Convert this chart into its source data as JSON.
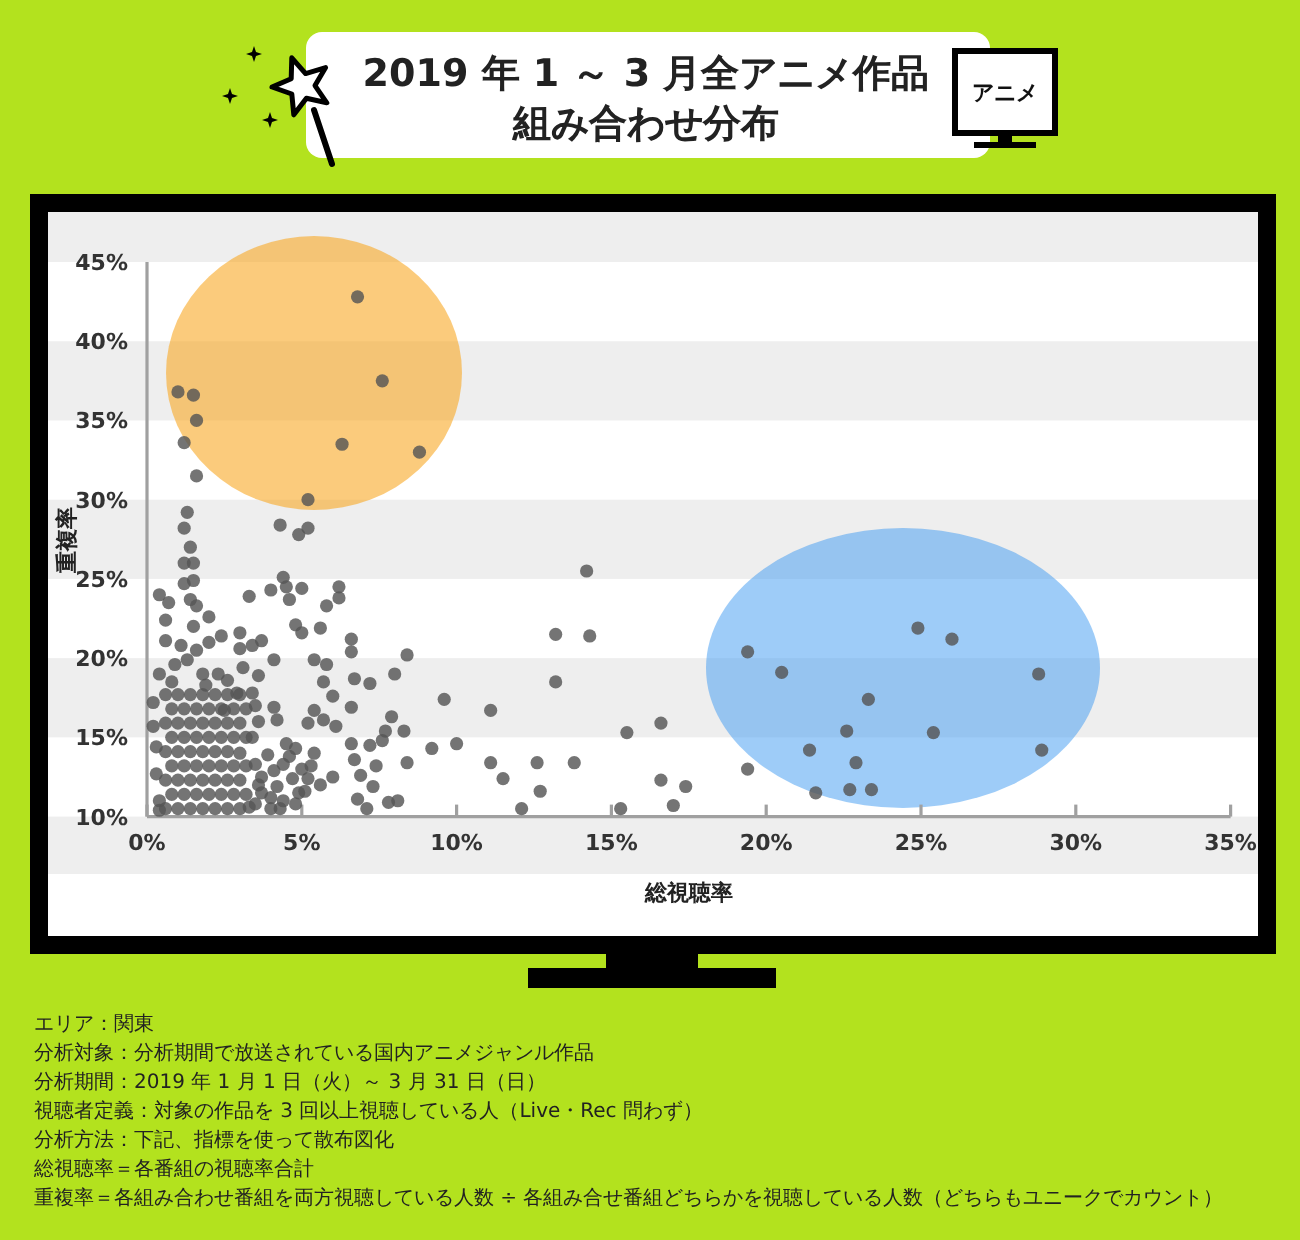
{
  "chart_data": {
    "type": "scatter",
    "title": "2019 年 1 ～ 3 月全アニメ作品組み合わせ分布",
    "xlabel": "総視聴率",
    "ylabel": "重複率",
    "xlim": [
      0,
      35
    ],
    "ylim": [
      10,
      45
    ],
    "xticks": [
      {
        "value": 0,
        "label": "0%"
      },
      {
        "value": 5,
        "label": "5%"
      },
      {
        "value": 10,
        "label": "10%"
      },
      {
        "value": 15,
        "label": "15%"
      },
      {
        "value": 20,
        "label": "20%"
      },
      {
        "value": 25,
        "label": "25%"
      },
      {
        "value": 30,
        "label": "30%"
      },
      {
        "value": 35,
        "label": "35%"
      }
    ],
    "yticks": [
      {
        "value": 10,
        "label": "10%"
      },
      {
        "value": 15,
        "label": "15%"
      },
      {
        "value": 20,
        "label": "20%"
      },
      {
        "value": 25,
        "label": "25%"
      },
      {
        "value": 30,
        "label": "30%"
      },
      {
        "value": 35,
        "label": "35%"
      },
      {
        "value": 40,
        "label": "40%"
      },
      {
        "value": 45,
        "label": "45%"
      }
    ],
    "bands": [
      {
        "axis": "y",
        "from": 15,
        "to": 20,
        "color": "#eeeeee"
      },
      {
        "axis": "y",
        "from": 25,
        "to": 30,
        "color": "#eeeeee"
      },
      {
        "axis": "y",
        "from": 35,
        "to": 40,
        "color": "#eeeeee"
      }
    ],
    "marker": "circle",
    "series": [
      {
        "color": "#555555",
        "x": [
          6.8,
          7.6,
          1.0,
          1.5,
          1.6,
          1.2,
          6.3,
          8.8,
          1.6,
          5.2,
          1.3,
          14.2,
          13.2,
          14.3,
          13.2,
          11.1,
          15.5,
          16.6,
          11.1,
          11.5,
          12.6,
          13.8,
          12.7,
          12.1,
          15.3,
          16.6,
          17.4,
          17.0,
          19.4,
          19.4,
          20.5,
          23.3,
          22.6,
          25.4,
          21.4,
          22.9,
          21.6,
          22.7,
          23.4,
          24.9,
          26.0,
          28.8,
          28.9,
          4.3,
          5.2,
          4.9,
          1.2,
          1.4,
          1.2,
          1.5,
          1.5,
          1.2,
          0.4,
          0.7,
          1.4,
          0.6,
          1.6,
          2.0,
          2.4,
          0.6,
          3.3,
          3.0,
          3.0,
          3.4,
          3.7,
          4.0,
          4.4,
          4.5,
          4.6,
          5.0,
          4.8,
          5.0,
          5.8,
          6.2,
          6.2,
          5.6,
          4.1,
          5.4,
          5.8,
          6.6,
          6.6,
          6.7,
          7.2,
          8.0,
          8.4,
          9.6,
          5.7,
          6.0,
          5.4,
          5.2,
          5.7,
          6.1,
          6.6,
          7.9,
          7.7,
          8.3,
          7.6,
          6.6,
          7.2,
          9.2,
          10.0,
          8.4,
          6.7,
          7.4,
          6.9,
          7.3,
          6.8,
          7.1,
          7.8,
          8.1,
          6.0,
          5.6,
          5.4,
          5.3,
          4.9,
          4.3,
          4.6,
          4.1,
          3.7,
          3.7,
          3.3,
          3.0,
          3.4,
          4.1,
          4.2,
          4.5,
          3.4,
          2.9,
          2.5,
          2.3,
          1.8,
          1.3,
          0.4,
          0.2,
          0.2,
          0.3,
          0.3,
          0.4,
          0.4,
          0.6,
          1.0,
          1.4,
          1.8,
          2.2,
          2.6,
          3.0,
          0.8,
          1.2,
          1.6,
          2.0,
          2.4,
          2.8,
          3.2,
          0.6,
          1.0,
          1.4,
          1.8,
          2.2,
          2.6,
          3.0,
          0.8,
          1.2,
          1.6,
          2.0,
          2.4,
          2.8,
          3.2,
          0.6,
          1.0,
          1.4,
          1.8,
          2.2,
          2.6,
          0.8,
          1.2,
          1.6,
          2.0,
          2.4,
          2.8,
          3.2,
          0.6,
          1.0,
          1.4,
          1.8,
          2.2,
          2.6,
          3.0,
          0.8,
          1.2,
          1.6,
          2.0,
          2.4,
          2.8,
          3.2,
          0.6,
          1.0,
          1.4,
          1.8,
          2.2,
          2.6,
          3.0,
          0.8,
          1.1,
          1.6,
          2.0,
          1.9,
          2.6,
          3.1,
          3.6,
          0.9,
          1.5,
          4.0,
          4.4,
          4.8,
          5.1,
          4.2,
          4.7,
          5.0,
          4.4,
          3.9,
          4.8,
          4.0,
          5.2,
          3.5,
          3.6,
          3.5,
          3.6,
          3.5
        ],
        "values": [
          42.8,
          37.5,
          36.8,
          36.6,
          35.0,
          33.6,
          33.5,
          33.0,
          31.5,
          30.0,
          29.2,
          25.5,
          21.5,
          21.4,
          18.5,
          16.7,
          15.3,
          15.9,
          13.4,
          12.4,
          13.4,
          13.4,
          11.6,
          10.5,
          10.5,
          12.3,
          11.9,
          10.7,
          13.0,
          20.4,
          19.1,
          17.4,
          15.4,
          15.3,
          14.2,
          13.4,
          11.5,
          11.7,
          11.7,
          21.9,
          21.2,
          19.0,
          14.2,
          28.4,
          28.2,
          27.8,
          28.2,
          27.0,
          26.0,
          26.0,
          24.9,
          24.7,
          24.0,
          23.5,
          23.7,
          22.4,
          23.3,
          22.6,
          21.4,
          21.1,
          23.9,
          21.6,
          20.6,
          20.8,
          21.1,
          24.3,
          25.1,
          24.5,
          23.7,
          24.4,
          22.1,
          21.6,
          23.3,
          24.5,
          23.8,
          21.9,
          19.9,
          19.9,
          19.6,
          21.2,
          20.4,
          18.7,
          18.4,
          19.0,
          20.2,
          17.4,
          18.5,
          17.6,
          16.7,
          15.9,
          16.1,
          15.7,
          16.9,
          16.3,
          15.4,
          15.4,
          14.8,
          14.6,
          14.5,
          14.3,
          14.6,
          13.4,
          13.6,
          13.2,
          12.6,
          11.9,
          11.1,
          10.5,
          10.9,
          11.0,
          12.5,
          12.0,
          14.0,
          13.2,
          11.5,
          10.5,
          13.8,
          12.9,
          12.5,
          11.5,
          10.6,
          14.0,
          15.0,
          16.9,
          16.1,
          14.6,
          17.8,
          17.8,
          16.7,
          19.0,
          19.0,
          19.9,
          19.0,
          17.2,
          15.7,
          14.4,
          12.7,
          11.0,
          10.4,
          10.5,
          10.5,
          10.5,
          10.5,
          10.5,
          10.5,
          10.5,
          11.4,
          11.4,
          11.4,
          11.4,
          11.4,
          11.4,
          11.4,
          12.3,
          12.3,
          12.3,
          12.3,
          12.3,
          12.3,
          12.3,
          13.2,
          13.2,
          13.2,
          13.2,
          13.2,
          13.2,
          13.2,
          14.1,
          14.1,
          14.1,
          14.1,
          14.1,
          14.1,
          15.0,
          15.0,
          15.0,
          15.0,
          15.0,
          15.0,
          15.0,
          15.9,
          15.9,
          15.9,
          15.9,
          15.9,
          15.9,
          15.9,
          16.8,
          16.8,
          16.8,
          16.8,
          16.8,
          16.8,
          16.8,
          17.7,
          17.7,
          17.7,
          17.7,
          17.7,
          17.7,
          17.7,
          18.5,
          20.8,
          20.5,
          21.0,
          18.3,
          18.6,
          19.4,
          18.9,
          19.6,
          22.0,
          10.5,
          11.0,
          10.8,
          11.6,
          11.9,
          12.4,
          13.0,
          13.3,
          13.9,
          14.3,
          11.2,
          12.4,
          10.8,
          12.0,
          13.3,
          16.0,
          17.0
        ]
      }
    ],
    "annotations": [
      "アニメ",
      "エリア：関東",
      "分析対象：分析期間で放送されている国内アニメジャンル作品",
      "分析期間：2019 年 1 月 1 日（火）～ 3 月 31 日（日）",
      "視聴者定義：対象の作品を 3 回以上視聴している人（Live・Rec 問わず）",
      "分析方法：下記、指標を使って散布図化",
      "総視聴率＝各番組の視聴率合計",
      "重複率＝各組み合わせ番組を両方視聴している人数 ÷ 各組み合せ番組どちらかを視聴している人数（どちらもユニークでカウント）"
    ]
  }
}
